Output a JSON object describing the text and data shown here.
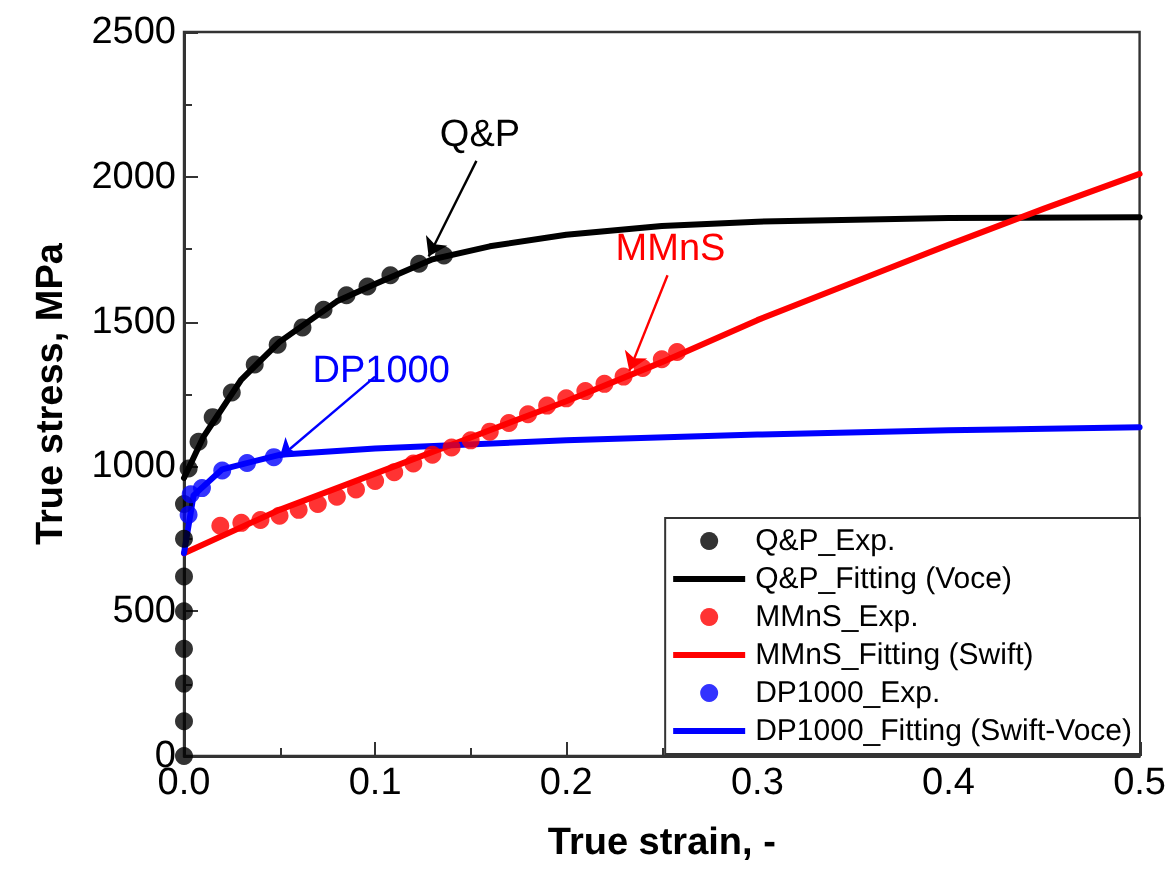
{
  "chart_data": {
    "type": "line",
    "xlabel": "True strain, -",
    "ylabel": "True stress, MPa",
    "xlim": [
      0,
      0.5
    ],
    "xticks": [
      {
        "value": 0,
        "label": "0.0"
      },
      0.1,
      0.2,
      0.3,
      0.4,
      0.5
    ],
    "ylim": [
      0,
      2500
    ],
    "yticks": [
      0,
      500,
      1000,
      1500,
      2000,
      2500
    ],
    "grid": false,
    "legend": "bottom right",
    "annotations": [
      {
        "text": "Q&P",
        "x": 0.128,
        "y": 1725
      },
      {
        "text": "MMnS",
        "x": 0.233,
        "y": 1330
      },
      {
        "text": "DP1000",
        "x": 0.05,
        "y": 1030
      }
    ],
    "series": [
      {
        "name": "Q&P_Exp.",
        "type": "scatter",
        "marker": "circle",
        "color": "#000000",
        "x": [
          0,
          0,
          0,
          0,
          0,
          0,
          0,
          0,
          0.0024,
          0.0076,
          0.015,
          0.025,
          0.037,
          0.049,
          0.062,
          0.073,
          0.085,
          0.096,
          0.108,
          0.123,
          0.136
        ],
        "values": [
          0,
          120,
          250,
          370,
          500,
          620,
          750,
          870,
          993,
          1085,
          1170,
          1255,
          1352,
          1420,
          1480,
          1541,
          1591,
          1621,
          1660,
          1700,
          1728
        ]
      },
      {
        "name": "Q&P_Fitting (Voce)",
        "marker": "none",
        "color": "#000000",
        "x": [
          0,
          0.01,
          0.03,
          0.05,
          0.08,
          0.1,
          0.13,
          0.16,
          0.2,
          0.25,
          0.3,
          0.4,
          0.5
        ],
        "values": [
          960,
          1100,
          1300,
          1430,
          1570,
          1630,
          1715,
          1760,
          1800,
          1830,
          1845,
          1858,
          1860
        ]
      },
      {
        "name": "MMnS_Exp.",
        "type": "scatter",
        "marker": "circle",
        "color": "#ff0000",
        "x": [
          0.019,
          0.03,
          0.04,
          0.05,
          0.06,
          0.07,
          0.08,
          0.09,
          0.1,
          0.11,
          0.12,
          0.13,
          0.14,
          0.15,
          0.16,
          0.17,
          0.18,
          0.19,
          0.2,
          0.21,
          0.22,
          0.23,
          0.24,
          0.25,
          0.258
        ],
        "values": [
          795,
          805,
          815,
          830,
          850,
          870,
          895,
          920,
          950,
          980,
          1010,
          1040,
          1065,
          1090,
          1120,
          1150,
          1180,
          1210,
          1235,
          1260,
          1285,
          1310,
          1340,
          1370,
          1395
        ]
      },
      {
        "name": "MMnS_Fitting (Swift)",
        "marker": "none",
        "color": "#ff0000",
        "x": [
          0,
          0.05,
          0.1,
          0.15,
          0.2,
          0.25,
          0.3,
          0.35,
          0.4,
          0.45,
          0.5
        ],
        "values": [
          700,
          850,
          975,
          1100,
          1225,
          1360,
          1505,
          1635,
          1765,
          1890,
          2010
        ]
      },
      {
        "name": "DP1000_Exp.",
        "type": "scatter",
        "marker": "circle",
        "color": "#0000ff",
        "x": [
          0.0024,
          0.0035,
          0.0094,
          0.02,
          0.033,
          0.047
        ],
        "values": [
          833,
          904,
          925,
          986,
          1012,
          1032
        ]
      },
      {
        "name": "DP1000_Fitting (Swift-Voce)",
        "marker": "none",
        "color": "#0000ff",
        "x": [
          0,
          0.005,
          0.02,
          0.05,
          0.1,
          0.2,
          0.3,
          0.4,
          0.5
        ],
        "values": [
          700,
          900,
          990,
          1040,
          1062,
          1090,
          1110,
          1125,
          1135
        ]
      }
    ]
  }
}
